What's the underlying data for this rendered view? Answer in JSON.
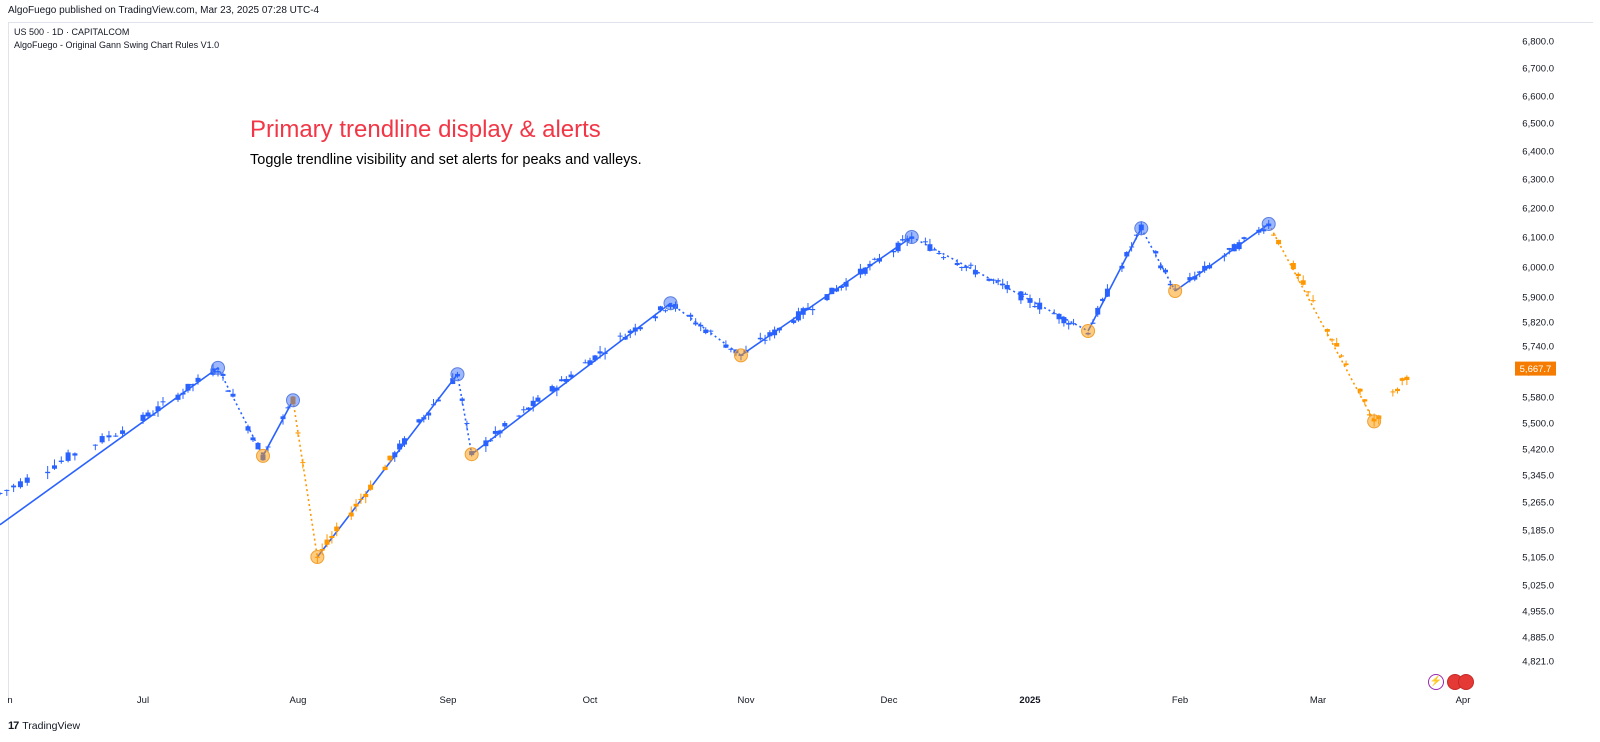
{
  "header": {
    "published": "AlgoFuego published on TradingView.com, Mar 23, 2025 07:28 UTC-4",
    "symbol": "US 500 · 1D · CAPITALCOM",
    "indicator": "AlgoFuego - Original Gann Swing Chart Rules V1.0"
  },
  "annotation": {
    "title": "Primary trendline display & alerts",
    "subtitle": "Toggle trendline visibility and set alerts for peaks and valleys."
  },
  "footer": {
    "brand": "TradingView"
  },
  "colors": {
    "up": "#2962ff",
    "down": "#ff9800",
    "title": "#f23645",
    "price_tag": "#f57c00"
  },
  "chart_data": {
    "type": "candlestick",
    "current_price": "5,667.7",
    "y_ticks": [
      "6,800.0",
      "6,700.0",
      "6,600.0",
      "6,500.0",
      "6,400.0",
      "6,300.0",
      "6,200.0",
      "6,100.0",
      "6,000.0",
      "5,900.0",
      "5,820.0",
      "5,740.0",
      "5,660.0",
      "5,580.0",
      "5,500.0",
      "5,420.0",
      "5,345.0",
      "5,265.0",
      "5,185.0",
      "5,105.0",
      "5,025.0",
      "4,955.0",
      "4,885.0",
      "4,821.0"
    ],
    "x_ticks": [
      "n",
      "Jul",
      "Aug",
      "Sep",
      "Oct",
      "Nov",
      "Dec",
      "2025",
      "Feb",
      "Mar",
      "Apr"
    ],
    "swing_points": [
      {
        "date": "2024-07-16",
        "price": 5670,
        "kind": "peak"
      },
      {
        "date": "2024-07-25",
        "price": 5400,
        "kind": "valley"
      },
      {
        "date": "2024-07-31",
        "price": 5570,
        "kind": "peak"
      },
      {
        "date": "2024-08-05",
        "price": 5105,
        "kind": "valley"
      },
      {
        "date": "2024-09-03",
        "price": 5650,
        "kind": "peak"
      },
      {
        "date": "2024-09-06",
        "price": 5405,
        "kind": "valley"
      },
      {
        "date": "2024-10-17",
        "price": 5880,
        "kind": "peak"
      },
      {
        "date": "2024-10-31",
        "price": 5710,
        "kind": "valley"
      },
      {
        "date": "2024-12-06",
        "price": 6100,
        "kind": "peak"
      },
      {
        "date": "2025-01-13",
        "price": 5790,
        "kind": "valley"
      },
      {
        "date": "2025-01-24",
        "price": 6130,
        "kind": "peak"
      },
      {
        "date": "2025-01-31",
        "price": 5920,
        "kind": "valley"
      },
      {
        "date": "2025-02-19",
        "price": 6145,
        "kind": "peak"
      },
      {
        "date": "2025-03-13",
        "price": 5505,
        "kind": "valley"
      }
    ]
  }
}
